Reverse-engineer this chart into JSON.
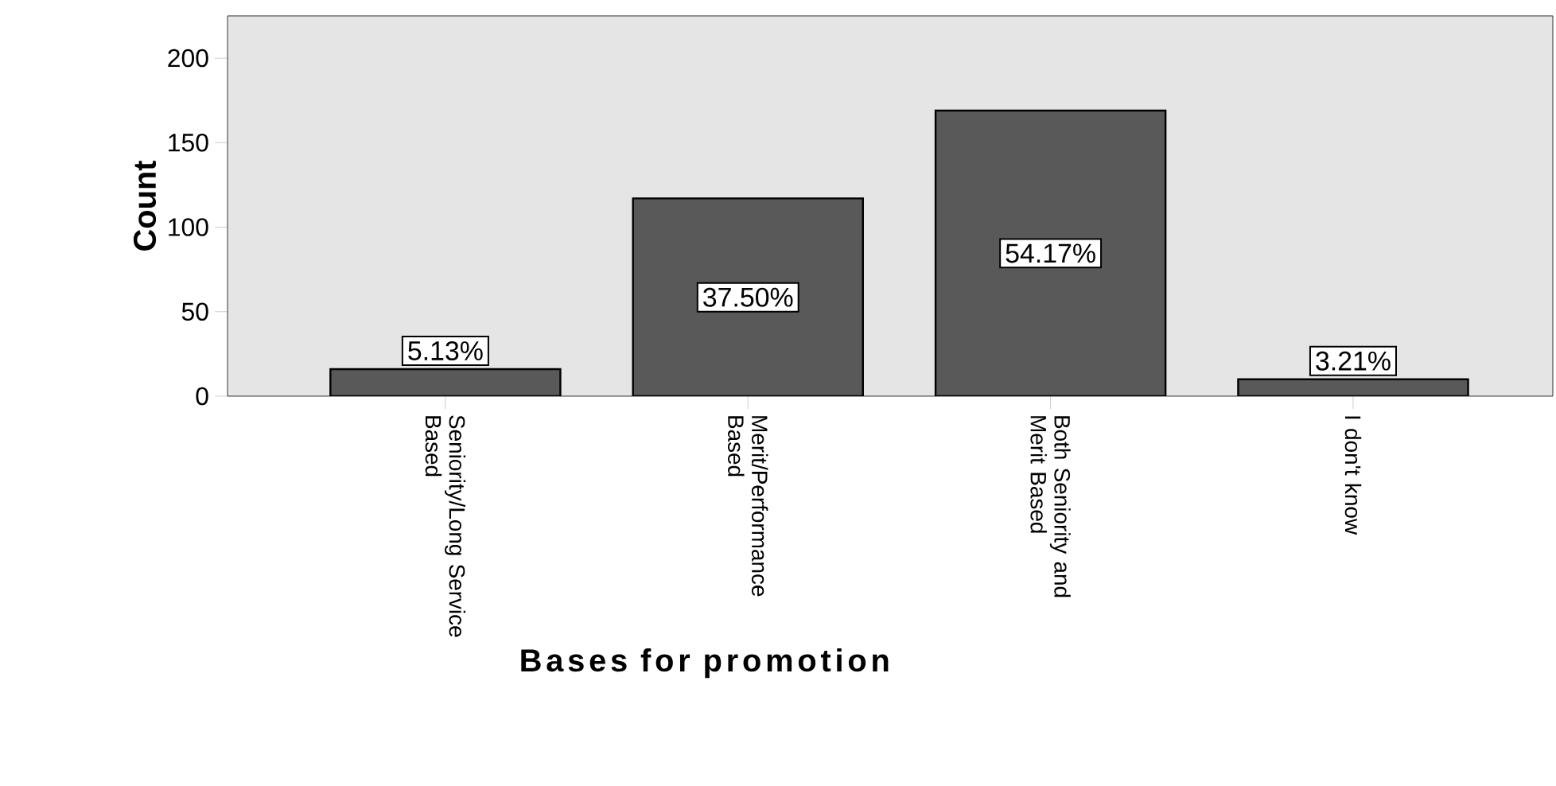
{
  "chart_data": {
    "type": "bar",
    "xlabel": "Bases for promotion",
    "ylabel": "Count",
    "categories": [
      "Seniority/Long Service Based",
      "Merit/Performance Based",
      "Both Seniority and Merit Based",
      "I don't know"
    ],
    "values": [
      16,
      117,
      169,
      10
    ],
    "annotations": [
      {
        "text": "5.13%",
        "x": "Seniority/Long Service Based",
        "y": 16
      },
      "37.50%",
      "54.17%",
      {
        "text": "3.21%",
        "x": "I don't know",
        "y": 10
      }
    ],
    "color": "#595959",
    "ylim": [
      0,
      225
    ],
    "yticks": [
      0,
      50,
      100,
      150,
      200
    ],
    "grid": false
  }
}
